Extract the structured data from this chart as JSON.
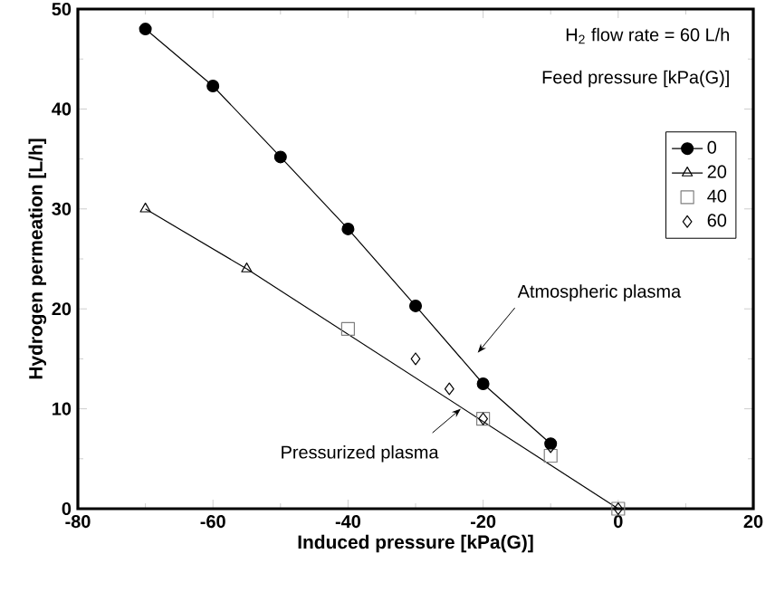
{
  "chart_data": {
    "type": "line",
    "xlabel": "Induced pressure [kPa(G)]",
    "ylabel": "Hydrogen permeation [L/h]",
    "legend_title": "Feed pressure [kPa(G)]",
    "xlim": [
      -80,
      20
    ],
    "xticks": [
      -80,
      -60,
      -40,
      -20,
      0,
      20
    ],
    "ylim": [
      0,
      50
    ],
    "yticks": [
      0,
      10,
      20,
      30,
      40,
      50
    ],
    "grid": false,
    "legend": "top right",
    "series": [
      {
        "name": "0",
        "marker": "circle",
        "color": "#000000",
        "x": [
          -70,
          -60,
          -50,
          -40,
          -30,
          -20,
          -10
        ],
        "values": [
          48,
          42.3,
          35.2,
          28,
          20.3,
          12.5,
          6.5
        ]
      },
      {
        "name": "20",
        "marker": "triangle",
        "color": "#000000",
        "x": [
          -70,
          -55
        ],
        "values": [
          30,
          24
        ]
      },
      {
        "name": "40",
        "type": "scatter",
        "marker": "square",
        "color": "#808080",
        "x": [
          -40,
          -20,
          -10,
          0
        ],
        "values": [
          18,
          9,
          5.3,
          0
        ]
      },
      {
        "name": "60",
        "type": "scatter",
        "marker": "diamond",
        "color": "#000000",
        "x": [
          -30,
          -25,
          -20,
          -10,
          0
        ],
        "values": [
          15,
          12,
          9,
          6.2,
          0
        ]
      },
      {
        "marker": "none",
        "color": "#000000",
        "x": [
          -55,
          0
        ],
        "values": [
          24,
          0
        ]
      }
    ],
    "annotations": [
      "H$_{2}$ flow rate = 60 L/h",
      "Atmospheric plasma",
      "Pressurized plasma"
    ]
  }
}
